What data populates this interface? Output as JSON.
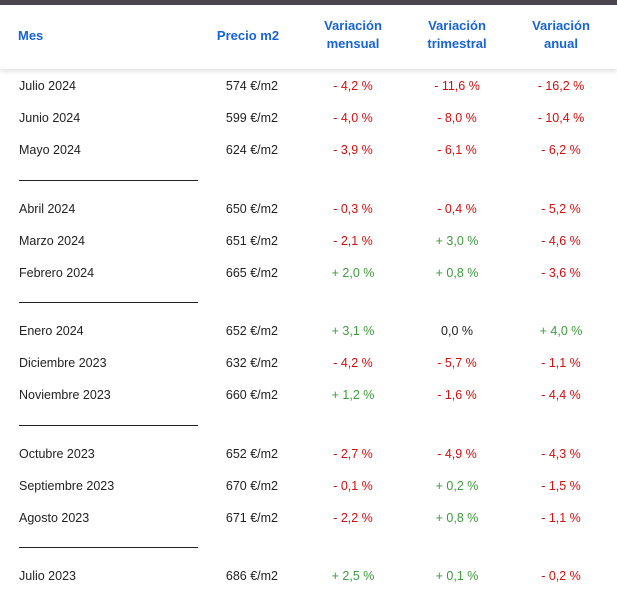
{
  "header": {
    "mes": "Mes",
    "precio": "Precio m2",
    "mensual_1": "Variación",
    "mensual_2": "mensual",
    "trimestral_1": "Variación",
    "trimestral_2": "trimestral",
    "anual_1": "Variación",
    "anual_2": "anual"
  },
  "colors": {
    "header_text": "#1763d6",
    "negative": "#cf1010",
    "positive": "#3e9a3e",
    "top_bar": "#4b4550"
  },
  "rows": [
    {
      "mes": "Julio 2024",
      "precio": "574 €/m2",
      "mensual": "- 4,2 %",
      "trimestral": "- 11,6 %",
      "anual": "- 16,2 %"
    },
    {
      "mes": "Junio 2024",
      "precio": "599 €/m2",
      "mensual": "- 4,0 %",
      "trimestral": "- 8,0 %",
      "anual": "- 10,4 %"
    },
    {
      "mes": "Mayo 2024",
      "precio": "624 €/m2",
      "mensual": "- 3,9 %",
      "trimestral": "- 6,1 %",
      "anual": "- 6,2 %"
    },
    {
      "mes": "Abril 2024",
      "precio": "650 €/m2",
      "mensual": "- 0,3 %",
      "trimestral": "- 0,4 %",
      "anual": "- 5,2 %"
    },
    {
      "mes": "Marzo 2024",
      "precio": "651 €/m2",
      "mensual": "- 2,1 %",
      "trimestral": "+ 3,0 %",
      "anual": "- 4,6 %"
    },
    {
      "mes": "Febrero 2024",
      "precio": "665 €/m2",
      "mensual": "+ 2,0 %",
      "trimestral": "+ 0,8 %",
      "anual": "- 3,6 %"
    },
    {
      "mes": "Enero 2024",
      "precio": "652 €/m2",
      "mensual": "+ 3,1 %",
      "trimestral": "0,0 %",
      "anual": "+ 4,0 %"
    },
    {
      "mes": "Diciembre 2023",
      "precio": "632 €/m2",
      "mensual": "- 4,2 %",
      "trimestral": "- 5,7 %",
      "anual": "- 1,1 %"
    },
    {
      "mes": "Noviembre 2023",
      "precio": "660 €/m2",
      "mensual": "+ 1,2 %",
      "trimestral": "- 1,6 %",
      "anual": "- 4,4 %"
    },
    {
      "mes": "Octubre 2023",
      "precio": "652 €/m2",
      "mensual": "- 2,7 %",
      "trimestral": "- 4,9 %",
      "anual": "- 4,3 %"
    },
    {
      "mes": "Septiembre 2023",
      "precio": "670 €/m2",
      "mensual": "- 0,1 %",
      "trimestral": "+ 0,2 %",
      "anual": "- 1,5 %"
    },
    {
      "mes": "Agosto 2023",
      "precio": "671 €/m2",
      "mensual": "- 2,2 %",
      "trimestral": "+ 0,8 %",
      "anual": "- 1,1 %"
    },
    {
      "mes": "Julio 2023",
      "precio": "686 €/m2",
      "mensual": "+ 2,5 %",
      "trimestral": "+ 0,1 %",
      "anual": "- 0,2 %"
    }
  ]
}
